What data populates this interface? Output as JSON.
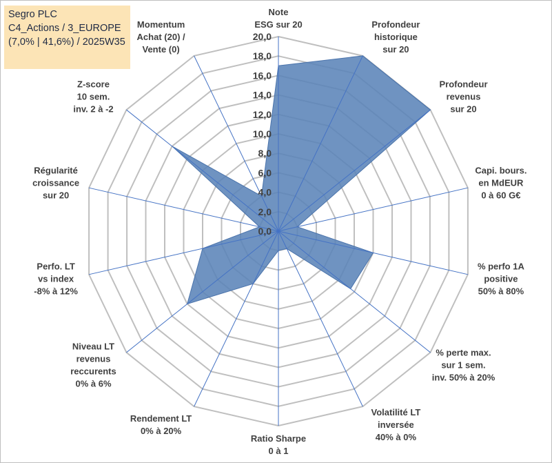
{
  "header": {
    "line1": "Segro PLC",
    "line2": "C4_Actions / 3_EUROPE",
    "line3": "(7,0% | 41,6%) / 2025W35"
  },
  "chart_data": {
    "type": "radar",
    "r_min": 0,
    "r_max": 20,
    "r_step": 2,
    "ticks": [
      "0,0",
      "2,0",
      "4,0",
      "6,0",
      "8,0",
      "10,0",
      "12,0",
      "14,0",
      "16,0",
      "18,0",
      "20,0"
    ],
    "grid": true,
    "colors": {
      "fill": "#5b84b8",
      "stroke": "#4a73ab",
      "grid": "#bfbfbf",
      "axis": "#4472c4"
    },
    "axes": [
      {
        "label": [
          "Note",
          "ESG sur 20"
        ],
        "value": 17.0
      },
      {
        "label": [
          "Profondeur",
          "historique",
          "sur 20"
        ],
        "value": 20.0
      },
      {
        "label": [
          "Profondeur",
          "revenus",
          "sur 20"
        ],
        "value": 20.0
      },
      {
        "label": [
          "Capi. bours.",
          "en MdEUR",
          "0 à 60 G€"
        ],
        "value": 2.0
      },
      {
        "label": [
          "% perfo 1A",
          "positive",
          "50% à 80%"
        ],
        "value": 10.0
      },
      {
        "label": [
          "% perte max.",
          "sur 1 sem.",
          "inv. 50% à 20%"
        ],
        "value": 9.5
      },
      {
        "label": [
          "Volatilité LT",
          "inversée",
          "40% à 0%"
        ],
        "value": 2.0
      },
      {
        "label": [
          "Ratio Sharpe",
          "0 à 1"
        ],
        "value": 2.0
      },
      {
        "label": [
          "Rendement LT",
          "0% à 20%"
        ],
        "value": 6.0
      },
      {
        "label": [
          "Niveau LT",
          "revenus",
          "reccurents",
          "0% à 6%"
        ],
        "value": 12.0
      },
      {
        "label": [
          "Perfo. LT",
          "vs index",
          "-8% à 12%"
        ],
        "value": 8.0
      },
      {
        "label": [
          "Régularité",
          "croissance",
          "sur 20"
        ],
        "value": 2.0
      },
      {
        "label": [
          "Z-score",
          "10 sem.",
          "inv. 2 à -2"
        ],
        "value": 14.0
      },
      {
        "label": [
          "Momentum",
          "Achat (20) /",
          "Vente (0)"
        ],
        "value": 4.0
      }
    ]
  }
}
